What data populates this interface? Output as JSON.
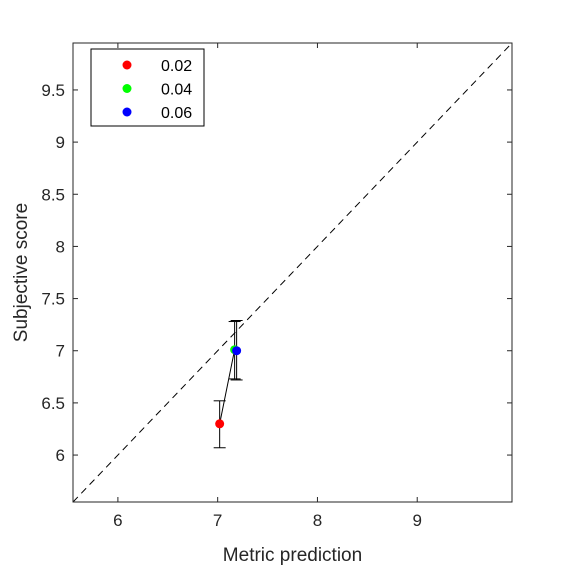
{
  "chart_data": {
    "type": "scatter",
    "xlabel": "Metric prediction",
    "ylabel": "Subjective score",
    "xlim": [
      5.55,
      9.95
    ],
    "ylim": [
      5.55,
      9.95
    ],
    "xticks": [
      6,
      7,
      8,
      9
    ],
    "yticks": [
      6,
      6.5,
      7,
      7.5,
      8,
      8.5,
      9,
      9.5
    ],
    "xtick_labels": [
      "6",
      "7",
      "8",
      "9"
    ],
    "ytick_labels": [
      "6",
      "6.5",
      "7",
      "7.5",
      "8",
      "8.5",
      "9",
      "9.5"
    ],
    "grid": false,
    "legend_position": "top-left",
    "identity_line": true,
    "series": [
      {
        "name": "0.02",
        "color": "#ff0000",
        "x": 7.02,
        "y": 6.3,
        "err_low": 6.07,
        "err_high": 6.52
      },
      {
        "name": "0.04",
        "color": "#00ff00",
        "x": 7.17,
        "y": 7.01,
        "err_low": 6.73,
        "err_high": 7.28
      },
      {
        "name": "0.06",
        "color": "#0000ff",
        "x": 7.19,
        "y": 7.0,
        "err_low": 6.72,
        "err_high": 7.29
      }
    ]
  }
}
